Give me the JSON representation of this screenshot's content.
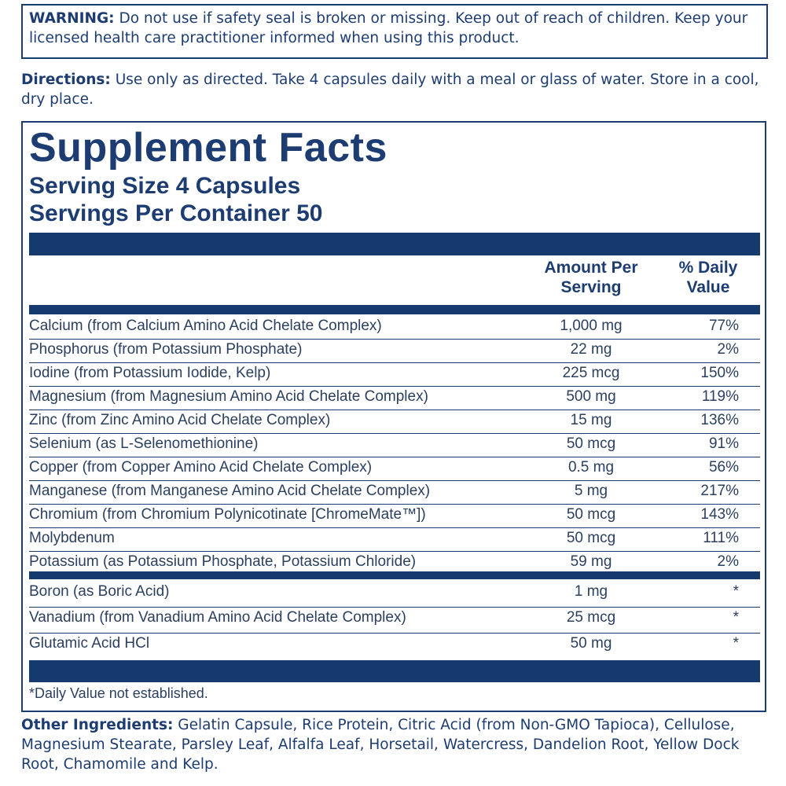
{
  "warning": {
    "label": "WARNING:",
    "text": "Do not use if safety seal is broken or missing. Keep out of reach of children. Keep your licensed health care practitioner informed when using this product."
  },
  "directions": {
    "label": "Directions:",
    "text": "Use only as directed. Take 4 capsules daily with a meal or glass of water. Store in a cool, dry place."
  },
  "facts": {
    "title": "Supplement Facts",
    "serving_size": "Serving Size 4 Capsules",
    "servings_per_container": "Servings Per Container 50",
    "columns": [
      "Amount Per Serving",
      "% Daily Value"
    ],
    "groups": [
      [
        [
          "Calcium (from Calcium Amino Acid Chelate Complex)",
          "1,000 mg",
          "77%"
        ],
        [
          "Phosphorus (from Potassium Phosphate)",
          "22 mg",
          "2%"
        ],
        [
          "Iodine (from Potassium Iodide, Kelp)",
          "225 mcg",
          "150%"
        ],
        [
          "Magnesium (from Magnesium Amino Acid Chelate Complex)",
          "500 mg",
          "119%"
        ],
        [
          "Zinc (from Zinc Amino Acid Chelate Complex)",
          "15 mg",
          "136%"
        ],
        [
          "Selenium (as L-Selenomethionine)",
          "50 mcg",
          "91%"
        ],
        [
          "Copper (from Copper Amino Acid Chelate Complex)",
          "0.5 mg",
          "56%"
        ],
        [
          "Manganese (from Manganese Amino Acid Chelate Complex)",
          "5 mg",
          "217%"
        ],
        [
          "Chromium (from Chromium Polynicotinate [ChromeMate™])",
          "50 mcg",
          "143%"
        ],
        [
          "Molybdenum",
          "50 mcg",
          "111%"
        ],
        [
          "Potassium (as Potassium Phosphate, Potassium Chloride)",
          "59 mg",
          "2%"
        ]
      ],
      [
        [
          "Boron (as Boric Acid)",
          "1 mg",
          "*"
        ],
        [
          "Vanadium (from Vanadium Amino Acid Chelate Complex)",
          "25 mcg",
          "*"
        ],
        [
          "Glutamic Acid HCl",
          "50 mg",
          "*"
        ]
      ]
    ],
    "footnote": "*Daily Value not established."
  },
  "other_ingredients": {
    "label": "Other Ingredients:",
    "text": "Gelatin Capsule, Rice Protein, Citric Acid (from Non-GMO Tapioca), Cellulose, Magnesium Stearate, Parsley Leaf, Alfalfa Leaf, Horsetail, Watercress, Dandelion Root, Yellow Dock Root, Chamomile and Kelp."
  }
}
